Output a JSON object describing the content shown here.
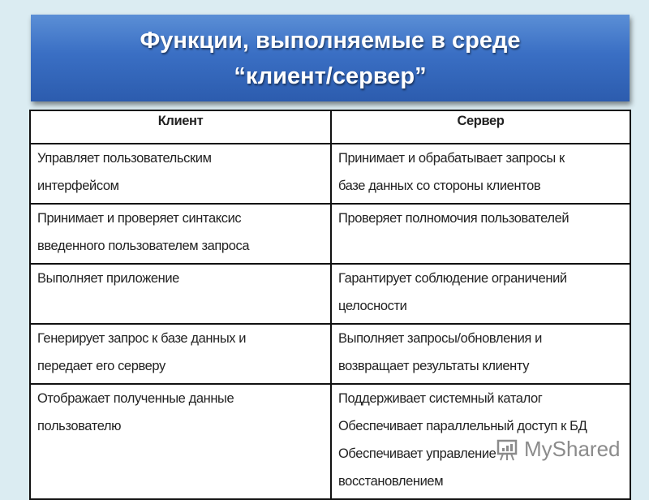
{
  "title": {
    "line1": "Функции, выполняемые в среде",
    "line2": "“клиент/сервер”"
  },
  "table": {
    "headers": [
      "Клиент",
      "Сервер"
    ],
    "rows": [
      {
        "client": [
          "Управляет пользовательским",
          "интерфейсом"
        ],
        "server": [
          "Принимает и обрабатывает запросы к",
          "базе данных со стороны клиентов"
        ]
      },
      {
        "client": [
          "Принимает и проверяет синтаксис",
          "введенного пользователем запроса"
        ],
        "server": [
          "Проверяет полномочия пользователей"
        ]
      },
      {
        "client": [
          "Выполняет приложение"
        ],
        "server": [
          "Гарантирует соблюдение ограничений",
          "целосности"
        ]
      },
      {
        "client": [
          "Генерирует запрос к базе данных и",
          "передает его серверу"
        ],
        "server": [
          "Выполняет запросы/обновления и",
          "возвращает результаты клиенту"
        ]
      },
      {
        "client": [
          "Отображает полученные данные",
          "пользователю"
        ],
        "server": [
          "Поддерживает системный каталог",
          "Обеспечивает параллельный доступ к БД",
          "Обеспечивает управление",
          "восстановлением"
        ]
      }
    ]
  },
  "watermark": {
    "text": "MyShared",
    "icon": "presentation-chart-icon"
  }
}
